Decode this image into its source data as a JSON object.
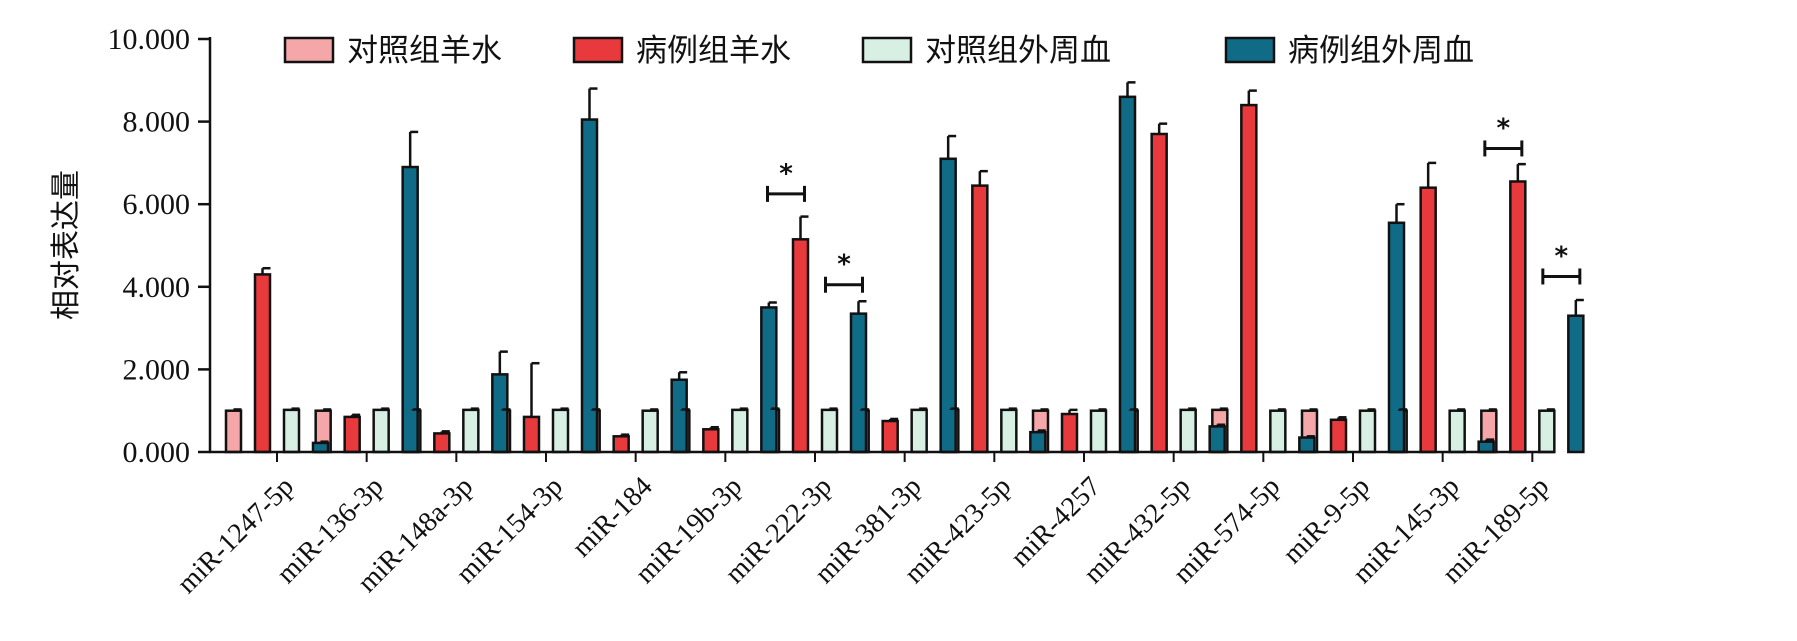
{
  "chart_data": {
    "type": "bar",
    "title": "",
    "xlabel": "",
    "ylabel": "相对表达量",
    "ylim": [
      0,
      10
    ],
    "yticks": [
      "0.000",
      "2.000",
      "4.000",
      "6.000",
      "8.000",
      "10.000"
    ],
    "grid": false,
    "legend_position": "top",
    "categories": [
      "miR-1247-5p",
      "miR-136-3p",
      "miR-148a-3p",
      "miR-154-3p",
      "miR-184",
      "miR-19b-3p",
      "miR-222-3p",
      "miR-381-3p",
      "miR-423-5p",
      "miR-4257",
      "miR-432-5p",
      "miR-574-5p",
      "miR-9-5p",
      "miR-145-3p",
      "miR-189-5p"
    ],
    "series": [
      {
        "name": "对照组羊水",
        "color": "#f4a6a8",
        "values": [
          1.0,
          1.0,
          1.0,
          1.0,
          1.0,
          1.0,
          1.02,
          1.0,
          1.02,
          1.0,
          1.0,
          1.02,
          1.0,
          1.0,
          1.0
        ],
        "errors": [
          0.03,
          0.03,
          0.03,
          0.03,
          0.03,
          0.03,
          0.03,
          0.03,
          0.03,
          0.03,
          0.03,
          0.03,
          0.03,
          0.03,
          0.03
        ]
      },
      {
        "name": "病例组羊水",
        "color": "#e8393d",
        "values": [
          4.3,
          0.85,
          0.45,
          0.85,
          0.38,
          0.55,
          5.15,
          0.75,
          6.45,
          0.92,
          7.7,
          8.4,
          0.78,
          6.4,
          6.55
        ],
        "errors": [
          0.15,
          0.05,
          0.05,
          1.3,
          0.04,
          0.05,
          0.55,
          0.05,
          0.35,
          0.1,
          0.25,
          0.35,
          0.06,
          0.6,
          0.42
        ]
      },
      {
        "name": "对照组外周血",
        "color": "#d8f0e4",
        "values": [
          1.02,
          1.02,
          1.02,
          1.02,
          1.0,
          1.02,
          1.02,
          1.02,
          1.02,
          1.0,
          1.02,
          1.0,
          1.0,
          1.0,
          1.0
        ],
        "errors": [
          0.03,
          0.03,
          0.03,
          0.03,
          0.03,
          0.03,
          0.03,
          0.03,
          0.03,
          0.03,
          0.03,
          0.03,
          0.03,
          0.03,
          0.03
        ]
      },
      {
        "name": "病例组外周血",
        "color": "#0f6b86",
        "values": [
          0.22,
          6.9,
          1.88,
          8.05,
          1.75,
          3.5,
          3.35,
          7.1,
          0.48,
          8.6,
          0.62,
          0.35,
          5.55,
          0.25,
          3.3
        ],
        "errors": [
          0.03,
          0.85,
          0.55,
          0.75,
          0.18,
          0.12,
          0.3,
          0.55,
          0.04,
          0.35,
          0.04,
          0.03,
          0.45,
          0.05,
          0.38
        ]
      }
    ],
    "significance": [
      {
        "category_index": 6,
        "between": [
          0,
          1
        ],
        "level": 6.25,
        "label": "*"
      },
      {
        "category_index": 6,
        "between": [
          2,
          3
        ],
        "level": 4.05,
        "label": "*"
      },
      {
        "category_index": 14,
        "between": [
          0,
          1
        ],
        "level": 7.35,
        "label": "*"
      },
      {
        "category_index": 14,
        "between": [
          2,
          3
        ],
        "level": 4.25,
        "label": "*"
      }
    ]
  }
}
